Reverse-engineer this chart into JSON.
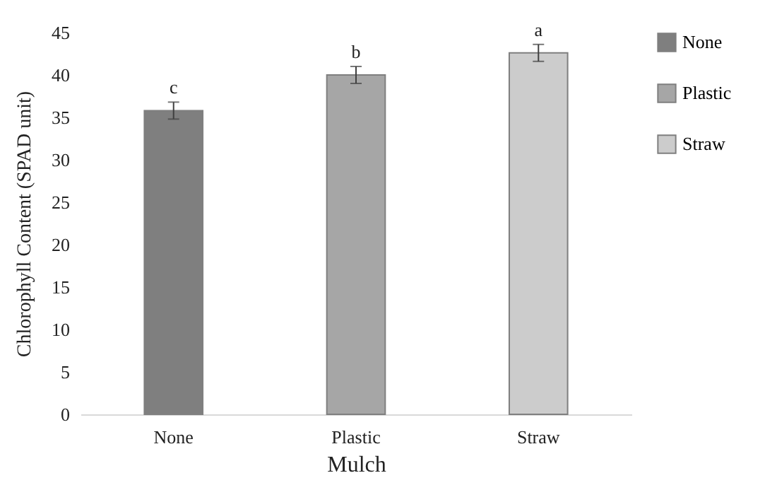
{
  "chart_data": {
    "type": "bar",
    "xlabel": "Mulch",
    "ylabel": "Chlorophyll Content (SPAD unit)",
    "categories": [
      "None",
      "Plastic",
      "Straw"
    ],
    "series": [
      {
        "name": "None",
        "color": "#7f7f7f",
        "values": [
          35.8,
          null,
          null
        ],
        "errors": [
          1.0,
          null,
          null
        ]
      },
      {
        "name": "Plastic",
        "color": "#a6a6a6",
        "values": [
          null,
          40.0,
          null
        ],
        "errors": [
          null,
          1.0,
          null
        ]
      },
      {
        "name": "Straw",
        "color": "#cccccc",
        "values": [
          null,
          null,
          42.6
        ],
        "errors": [
          null,
          null,
          1.0
        ]
      }
    ],
    "ylim": [
      0,
      45
    ],
    "yticks": [
      0,
      5,
      10,
      15,
      20,
      25,
      30,
      35,
      40,
      45
    ],
    "grid": false,
    "legend": "right",
    "annotations": [
      {
        "text": "c",
        "x": "None",
        "y": 37.3
      },
      {
        "text": "b",
        "x": "Plastic",
        "y": 41.5
      },
      {
        "text": "a",
        "x": "Straw",
        "y": 44.1
      }
    ]
  }
}
